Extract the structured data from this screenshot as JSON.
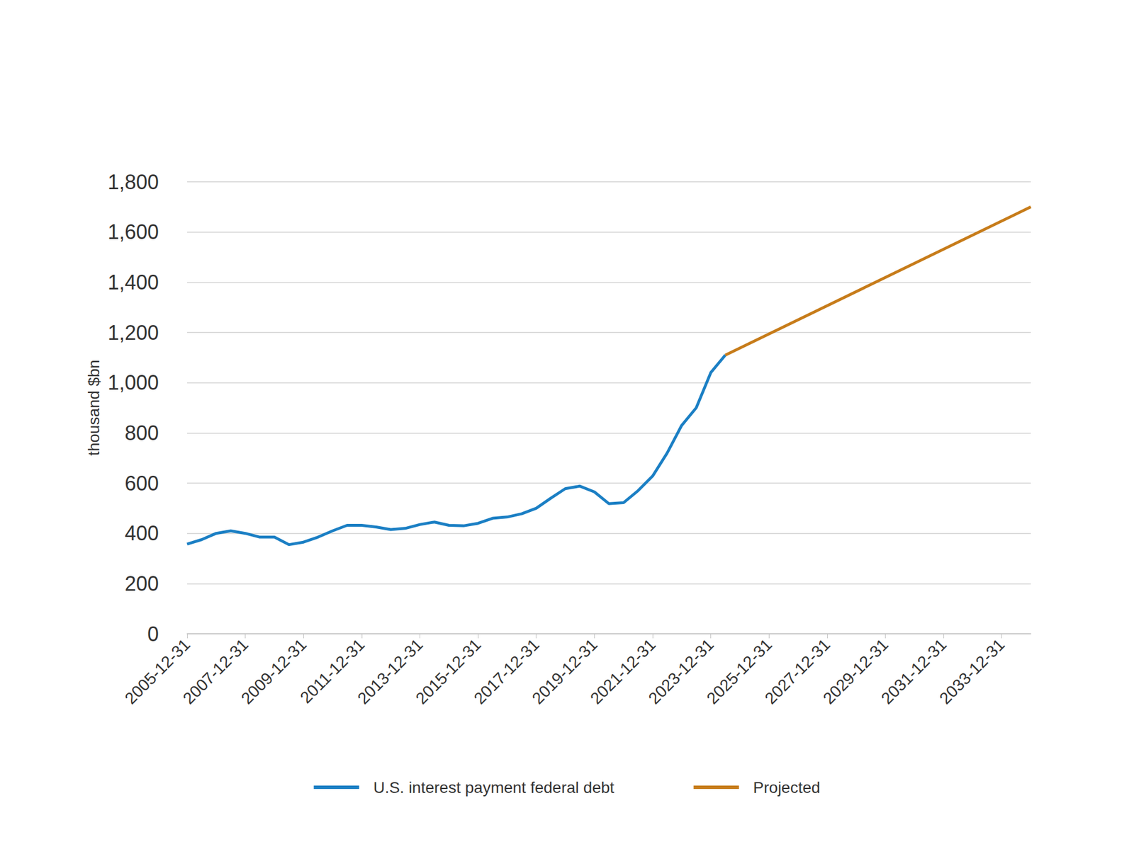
{
  "chart_data": {
    "type": "line",
    "y_label": "thousand $bn",
    "categories": [
      "2005-12-31",
      null,
      null,
      null,
      "2007-12-31",
      null,
      null,
      null,
      "2009-12-31",
      null,
      null,
      null,
      "2011-12-31",
      null,
      null,
      null,
      "2013-12-31",
      null,
      null,
      null,
      "2015-12-31",
      null,
      null,
      null,
      "2017-12-31",
      null,
      null,
      null,
      "2019-12-31",
      null,
      null,
      null,
      "2021-12-31",
      null,
      null,
      null,
      "2023-12-31",
      null,
      null,
      null,
      "2025-12-31",
      null,
      null,
      null,
      "2027-12-31",
      null,
      null,
      null,
      "2029-12-31",
      null,
      null,
      null,
      "2031-12-31",
      null,
      null,
      null,
      "2033-12-31",
      null,
      null
    ],
    "series": [
      {
        "name": "U.S. interest payment federal debt",
        "color": "#1b7fc4",
        "line_style": "solid",
        "values": [
          357,
          375,
          400,
          410,
          400,
          385,
          385,
          355,
          365,
          385,
          410,
          432,
          432,
          425,
          415,
          420,
          435,
          445,
          432,
          430,
          440,
          460,
          465,
          478,
          500,
          540,
          578,
          588,
          565,
          518,
          522,
          570,
          628,
          720,
          830,
          900,
          1040,
          1110,
          null,
          null,
          null,
          null,
          null,
          null,
          null,
          null,
          null,
          null,
          null,
          null,
          null,
          null,
          null,
          null,
          null,
          null,
          null,
          null,
          null
        ]
      },
      {
        "name": "Projected",
        "color": "#c77c1a",
        "line_style": "solid",
        "values": [
          null,
          null,
          null,
          null,
          null,
          null,
          null,
          null,
          null,
          null,
          null,
          null,
          null,
          null,
          null,
          null,
          null,
          null,
          null,
          null,
          null,
          null,
          null,
          null,
          null,
          null,
          null,
          null,
          null,
          null,
          null,
          null,
          null,
          null,
          null,
          null,
          null,
          1110,
          null,
          null,
          null,
          null,
          null,
          null,
          null,
          null,
          null,
          null,
          null,
          null,
          null,
          null,
          null,
          null,
          null,
          null,
          null,
          null,
          1700
        ]
      }
    ],
    "ylim": [
      0,
      1800
    ],
    "yticks": [
      0,
      200,
      400,
      600,
      800,
      1000,
      1200,
      1400,
      1600,
      1800
    ],
    "grid": true,
    "legend": "bottom"
  }
}
